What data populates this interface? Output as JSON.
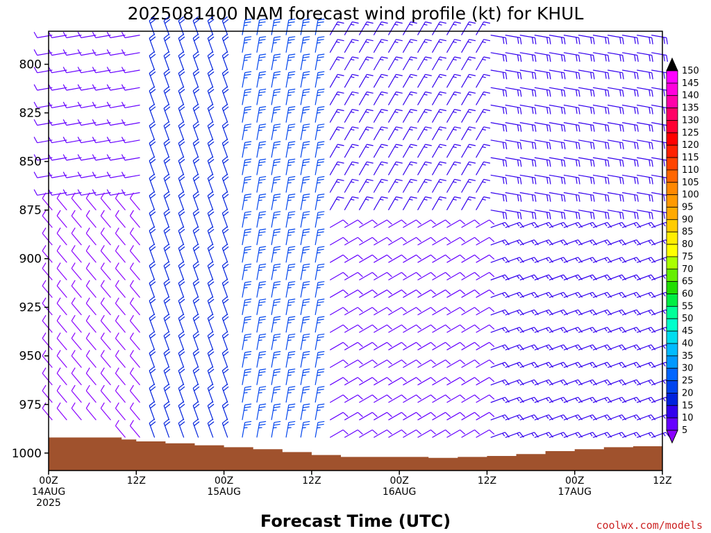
{
  "chart_data": {
    "type": "wind-barb time-height",
    "title": "2025081400 NAM forecast wind profile (kt) for KHUL",
    "xlabel": "Forecast Time (UTC)",
    "ylabel": "",
    "x_ticks": [
      {
        "label": "00Z",
        "date": "14AUG",
        "year": "2025",
        "hour": 0
      },
      {
        "label": "12Z",
        "date": "",
        "year": "",
        "hour": 12
      },
      {
        "label": "00Z",
        "date": "15AUG",
        "year": "",
        "hour": 24
      },
      {
        "label": "12Z",
        "date": "",
        "year": "",
        "hour": 36
      },
      {
        "label": "00Z",
        "date": "16AUG",
        "year": "",
        "hour": 48
      },
      {
        "label": "12Z",
        "date": "",
        "year": "",
        "hour": 60
      },
      {
        "label": "00Z",
        "date": "17AUG",
        "year": "",
        "hour": 72
      },
      {
        "label": "12Z",
        "date": "",
        "year": "",
        "hour": 84
      }
    ],
    "xlim": [
      0,
      84
    ],
    "y_ticks": [
      800,
      825,
      850,
      875,
      900,
      925,
      950,
      975,
      1000
    ],
    "ylim": [
      1009,
      783
    ],
    "colorbar": {
      "levels": [
        5,
        10,
        15,
        20,
        25,
        30,
        35,
        40,
        45,
        50,
        55,
        60,
        65,
        70,
        75,
        80,
        85,
        90,
        95,
        100,
        105,
        110,
        115,
        120,
        125,
        130,
        135,
        140,
        145,
        150
      ],
      "colors": [
        "#8a00ff",
        "#6600ff",
        "#3300ee",
        "#0022dd",
        "#0044ee",
        "#0066ff",
        "#0099ff",
        "#00bbff",
        "#00ddee",
        "#00ffcc",
        "#00ff99",
        "#00ee44",
        "#22dd00",
        "#66ee00",
        "#aaff00",
        "#ffff00",
        "#ffee00",
        "#ffcc00",
        "#ffaa00",
        "#ff9900",
        "#ff8800",
        "#ff6600",
        "#ff4400",
        "#ff2200",
        "#ff0000",
        "#ff0033",
        "#ff0066",
        "#ff00aa",
        "#ff00dd",
        "#ff00ff"
      ],
      "under_color": "#8a00ff",
      "over_color": "#000000"
    },
    "surface_pressure": [
      {
        "t": 0,
        "p": 992
      },
      {
        "t": 6,
        "p": 992
      },
      {
        "t": 10,
        "p": 993
      },
      {
        "t": 12,
        "p": 994
      },
      {
        "t": 16,
        "p": 995
      },
      {
        "t": 20,
        "p": 996
      },
      {
        "t": 24,
        "p": 997
      },
      {
        "t": 28,
        "p": 998
      },
      {
        "t": 32,
        "p": 999.5
      },
      {
        "t": 36,
        "p": 1001
      },
      {
        "t": 40,
        "p": 1002
      },
      {
        "t": 44,
        "p": 1002
      },
      {
        "t": 48,
        "p": 1002
      },
      {
        "t": 52,
        "p": 1002.5
      },
      {
        "t": 56,
        "p": 1002
      },
      {
        "t": 60,
        "p": 1001.5
      },
      {
        "t": 64,
        "p": 1000.5
      },
      {
        "t": 68,
        "p": 999
      },
      {
        "t": 72,
        "p": 998
      },
      {
        "t": 76,
        "p": 997
      },
      {
        "t": 80,
        "p": 996.5
      },
      {
        "t": 84,
        "p": 996
      }
    ],
    "wind_regimes": [
      {
        "t_start": 0,
        "t_end": 14,
        "p_top": 783,
        "p_bottom": 870,
        "direction_deg": 260,
        "speed_kt": 12
      },
      {
        "t_start": 0,
        "t_end": 14,
        "p_top": 870,
        "p_bottom": 1000,
        "direction_deg": 320,
        "speed_kt": 8
      },
      {
        "t_start": 14,
        "t_end": 26,
        "p_top": 783,
        "p_bottom": 1000,
        "direction_deg": 340,
        "speed_kt": 22
      },
      {
        "t_start": 26,
        "t_end": 38,
        "p_top": 783,
        "p_bottom": 1000,
        "direction_deg": 10,
        "speed_kt": 25
      },
      {
        "t_start": 38,
        "t_end": 60,
        "p_top": 783,
        "p_bottom": 880,
        "direction_deg": 30,
        "speed_kt": 15
      },
      {
        "t_start": 38,
        "t_end": 60,
        "p_top": 880,
        "p_bottom": 1000,
        "direction_deg": 60,
        "speed_kt": 12
      },
      {
        "t_start": 60,
        "t_end": 84,
        "p_top": 783,
        "p_bottom": 880,
        "direction_deg": 100,
        "speed_kt": 18
      },
      {
        "t_start": 60,
        "t_end": 84,
        "p_top": 880,
        "p_bottom": 1000,
        "direction_deg": 70,
        "speed_kt": 15
      }
    ]
  },
  "credit": "coolwx.com/models"
}
